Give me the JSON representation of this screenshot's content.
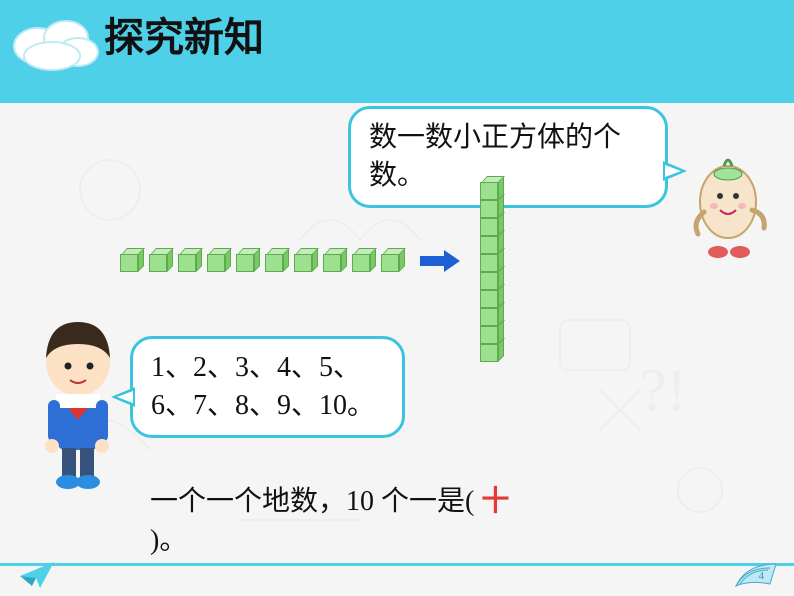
{
  "header": {
    "title": "探究新知",
    "band_color": "#4dd0e8"
  },
  "balloon_top": {
    "text": "数一数小正方体的个数。",
    "border_color": "#3ac4de"
  },
  "balloon_bottom": {
    "text": "1、2、3、4、5、6、7、8、9、10。",
    "border_color": "#3ac4de"
  },
  "cubes": {
    "row_count": 10,
    "stack_count": 10,
    "fill": "#9de08f",
    "top_fill": "#c4ecb9",
    "side_fill": "#79c968",
    "stroke": "#5fa94f"
  },
  "arrow": {
    "color": "#1f5fd6"
  },
  "bottom_sentence": {
    "prefix": "一个一个地数，10 个一是(",
    "answer": "十",
    "suffix": ")。"
  },
  "page_number": "4"
}
